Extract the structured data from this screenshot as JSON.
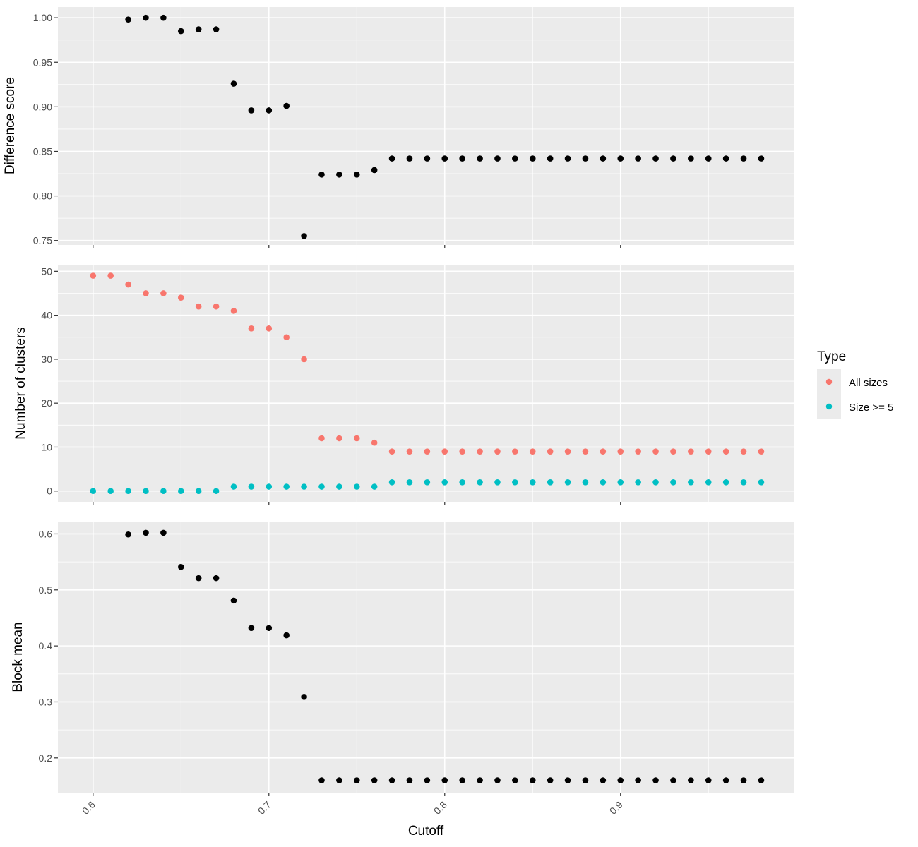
{
  "colors": {
    "all_sizes": "#f8766d",
    "size_ge_5": "#00bfc4",
    "single": "#000000",
    "panel_background": "#ebebeb",
    "grid": "#ffffff"
  },
  "legend": {
    "title": "Type",
    "items": [
      {
        "label": "All sizes",
        "color": "#f8766d"
      },
      {
        "label": "Size >= 5",
        "color": "#00bfc4"
      }
    ],
    "placement": "right"
  },
  "chart_data": [
    {
      "type": "scatter",
      "xlabel": "Cutoff",
      "ylabel": "Difference score",
      "xlim": [
        0.58,
        0.9985
      ],
      "ylim": [
        0.745,
        1.012
      ],
      "x_ticks": [
        0.6,
        0.7,
        0.8,
        0.9
      ],
      "x_tick_labels": [
        "0.6",
        "0.7",
        "0.8",
        "0.9"
      ],
      "y_ticks": [
        0.75,
        0.8,
        0.85,
        0.9,
        0.95,
        1.0
      ],
      "y_tick_labels": [
        "0.75",
        "0.80",
        "0.85",
        "0.90",
        "0.95",
        "1.00"
      ],
      "grid": true,
      "series": [
        {
          "x": [
            0.62,
            0.63,
            0.64,
            0.65,
            0.66,
            0.67,
            0.68,
            0.69,
            0.7,
            0.71,
            0.72,
            0.73,
            0.74,
            0.75,
            0.76,
            0.77,
            0.78,
            0.79,
            0.8,
            0.81,
            0.82,
            0.83,
            0.84,
            0.85,
            0.86,
            0.87,
            0.88,
            0.89,
            0.9,
            0.91,
            0.92,
            0.93,
            0.94,
            0.95,
            0.96,
            0.97,
            0.98
          ],
          "y": [
            0.998,
            1.0,
            1.0,
            0.985,
            0.987,
            0.987,
            0.926,
            0.896,
            0.896,
            0.901,
            0.755,
            0.824,
            0.824,
            0.824,
            0.829,
            0.842,
            0.842,
            0.842,
            0.842,
            0.842,
            0.842,
            0.842,
            0.842,
            0.842,
            0.842,
            0.842,
            0.842,
            0.842,
            0.842,
            0.842,
            0.842,
            0.842,
            0.842,
            0.842,
            0.842,
            0.842,
            0.842
          ]
        }
      ]
    },
    {
      "type": "scatter",
      "xlabel": "Cutoff",
      "ylabel": "Number of clusters",
      "xlim": [
        0.58,
        0.9985
      ],
      "ylim": [
        -2.45,
        51.5
      ],
      "x_ticks": [
        0.6,
        0.7,
        0.8,
        0.9
      ],
      "x_tick_labels": [
        "0.6",
        "0.7",
        "0.8",
        "0.9"
      ],
      "y_ticks": [
        0,
        10,
        20,
        30,
        40,
        50
      ],
      "y_tick_labels": [
        "0",
        "10",
        "20",
        "30",
        "40",
        "50"
      ],
      "grid": true,
      "series": [
        {
          "name": "All sizes",
          "x": [
            0.6,
            0.61,
            0.62,
            0.63,
            0.64,
            0.65,
            0.66,
            0.67,
            0.68,
            0.69,
            0.7,
            0.71,
            0.72,
            0.73,
            0.74,
            0.75,
            0.76,
            0.77,
            0.78,
            0.79,
            0.8,
            0.81,
            0.82,
            0.83,
            0.84,
            0.85,
            0.86,
            0.87,
            0.88,
            0.89,
            0.9,
            0.91,
            0.92,
            0.93,
            0.94,
            0.95,
            0.96,
            0.97,
            0.98
          ],
          "y": [
            49,
            49,
            47,
            45,
            45,
            44,
            42,
            42,
            41,
            37,
            37,
            35,
            30,
            12,
            12,
            12,
            11,
            9,
            9,
            9,
            9,
            9,
            9,
            9,
            9,
            9,
            9,
            9,
            9,
            9,
            9,
            9,
            9,
            9,
            9,
            9,
            9,
            9,
            9
          ]
        },
        {
          "name": "Size >= 5",
          "x": [
            0.6,
            0.61,
            0.62,
            0.63,
            0.64,
            0.65,
            0.66,
            0.67,
            0.68,
            0.69,
            0.7,
            0.71,
            0.72,
            0.73,
            0.74,
            0.75,
            0.76,
            0.77,
            0.78,
            0.79,
            0.8,
            0.81,
            0.82,
            0.83,
            0.84,
            0.85,
            0.86,
            0.87,
            0.88,
            0.89,
            0.9,
            0.91,
            0.92,
            0.93,
            0.94,
            0.95,
            0.96,
            0.97,
            0.98
          ],
          "y": [
            0,
            0,
            0,
            0,
            0,
            0,
            0,
            0,
            1,
            1,
            1,
            1,
            1,
            1,
            1,
            1,
            1,
            2,
            2,
            2,
            2,
            2,
            2,
            2,
            2,
            2,
            2,
            2,
            2,
            2,
            2,
            2,
            2,
            2,
            2,
            2,
            2,
            2,
            2
          ]
        }
      ]
    },
    {
      "type": "scatter",
      "xlabel": "Cutoff",
      "ylabel": "Block mean",
      "xlim": [
        0.58,
        0.9985
      ],
      "ylim": [
        0.138,
        0.622
      ],
      "x_ticks": [
        0.6,
        0.7,
        0.8,
        0.9
      ],
      "x_tick_labels": [
        "0.6",
        "0.7",
        "0.8",
        "0.9"
      ],
      "y_ticks": [
        0.2,
        0.3,
        0.4,
        0.5,
        0.6
      ],
      "y_tick_labels": [
        "0.2",
        "0.3",
        "0.4",
        "0.5",
        "0.6"
      ],
      "grid": true,
      "series": [
        {
          "x": [
            0.62,
            0.63,
            0.64,
            0.65,
            0.66,
            0.67,
            0.68,
            0.69,
            0.7,
            0.71,
            0.72,
            0.73,
            0.74,
            0.75,
            0.76,
            0.77,
            0.78,
            0.79,
            0.8,
            0.81,
            0.82,
            0.83,
            0.84,
            0.85,
            0.86,
            0.87,
            0.88,
            0.89,
            0.9,
            0.91,
            0.92,
            0.93,
            0.94,
            0.95,
            0.96,
            0.97,
            0.98
          ],
          "y": [
            0.599,
            0.602,
            0.602,
            0.541,
            0.521,
            0.521,
            0.481,
            0.432,
            0.432,
            0.419,
            0.309,
            0.16,
            0.16,
            0.16,
            0.16,
            0.16,
            0.16,
            0.16,
            0.16,
            0.16,
            0.16,
            0.16,
            0.16,
            0.16,
            0.16,
            0.16,
            0.16,
            0.16,
            0.16,
            0.16,
            0.16,
            0.16,
            0.16,
            0.16,
            0.16,
            0.16,
            0.16
          ]
        }
      ]
    }
  ]
}
